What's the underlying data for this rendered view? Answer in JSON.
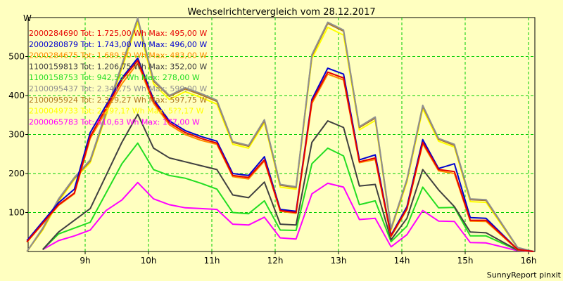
{
  "chart_data": {
    "type": "line",
    "title": "Wechselrichtervergleich vom 28.12.2017",
    "ylabel": "W",
    "xlabel": "",
    "ylim": [
      0,
      600
    ],
    "xlim": [
      8.1,
      16.1
    ],
    "x_ticks": [
      9,
      10,
      11,
      12,
      13,
      14,
      15,
      16
    ],
    "x_tick_labels": [
      "9h",
      "10h",
      "11h",
      "12h",
      "13h",
      "14h",
      "15h",
      "16h"
    ],
    "y_ticks": [
      100,
      200,
      300,
      400,
      500
    ],
    "y_tick_labels": [
      "100",
      "200",
      "300",
      "400",
      "500"
    ],
    "grid": true,
    "legend_position": "top-left",
    "footer": "SunnyReport pinxit",
    "series": [
      {
        "name": "2000284690 Tot: 1.725,00 Wh Max: 495,00 W",
        "color": "#e60000",
        "x": [
          8.08,
          8.58,
          8.83,
          9.08,
          9.58,
          9.83,
          10.08,
          10.33,
          10.58,
          10.83,
          11.08,
          11.33,
          11.58,
          11.83,
          12.08,
          12.33,
          12.58,
          12.83,
          13.08,
          13.33,
          13.58,
          13.83,
          14.08,
          14.33,
          14.58,
          14.83,
          15.08,
          15.33,
          15.83,
          16.08
        ],
        "values": [
          25,
          120,
          150,
          295,
          440,
          490,
          385,
          330,
          305,
          290,
          278,
          195,
          190,
          235,
          105,
          100,
          385,
          460,
          445,
          230,
          240,
          40,
          110,
          280,
          210,
          205,
          80,
          80,
          5,
          0
        ]
      },
      {
        "name": "2000280879 Tot: 1.743,00 Wh Max: 496,00 W",
        "color": "#0000d0",
        "x": [
          8.08,
          8.58,
          8.83,
          9.08,
          9.58,
          9.83,
          10.08,
          10.33,
          10.58,
          10.83,
          11.08,
          11.33,
          11.58,
          11.83,
          12.08,
          12.33,
          12.58,
          12.83,
          13.08,
          13.33,
          13.58,
          13.83,
          14.08,
          14.33,
          14.58,
          14.83,
          15.08,
          15.33,
          15.83,
          16.08
        ],
        "values": [
          28,
          125,
          160,
          305,
          445,
          496,
          390,
          335,
          310,
          295,
          283,
          200,
          195,
          243,
          108,
          103,
          390,
          470,
          455,
          235,
          248,
          42,
          115,
          287,
          213,
          225,
          87,
          85,
          5,
          0
        ]
      },
      {
        "name": "2000284675 Tot: 1.689,50 Wh Max: 483,00 W",
        "color": "#ff8c00",
        "x": [
          8.08,
          8.58,
          8.83,
          9.08,
          9.58,
          9.83,
          10.08,
          10.33,
          10.58,
          10.83,
          11.08,
          11.33,
          11.58,
          11.83,
          12.08,
          12.33,
          12.58,
          12.83,
          13.08,
          13.33,
          13.58,
          13.83,
          14.08,
          14.33,
          14.58,
          14.83,
          15.08,
          15.33,
          15.83,
          16.08
        ],
        "values": [
          24,
          118,
          148,
          290,
          430,
          483,
          380,
          325,
          300,
          285,
          275,
          192,
          186,
          232,
          103,
          98,
          380,
          455,
          440,
          228,
          236,
          38,
          108,
          276,
          207,
          200,
          78,
          77,
          4,
          0
        ]
      },
      {
        "name": "1100159813 Tot: 1.206,75 Wh Max: 352,00 W",
        "color": "#404040",
        "x": [
          8.33,
          8.58,
          8.83,
          9.08,
          9.58,
          9.83,
          10.08,
          10.33,
          10.58,
          10.83,
          11.08,
          11.33,
          11.58,
          11.83,
          12.08,
          12.33,
          12.58,
          12.83,
          13.08,
          13.33,
          13.58,
          13.83,
          14.08,
          14.33,
          14.58,
          14.83,
          15.08,
          15.33,
          15.83,
          16.08
        ],
        "values": [
          5,
          50,
          80,
          110,
          280,
          352,
          265,
          240,
          230,
          220,
          210,
          145,
          138,
          178,
          70,
          68,
          280,
          335,
          318,
          168,
          172,
          30,
          85,
          210,
          158,
          115,
          50,
          48,
          3,
          0
        ]
      },
      {
        "name": "1100158753 Tot: 942,50 Wh Max: 278,00 W",
        "color": "#22dd22",
        "x": [
          8.33,
          8.58,
          8.83,
          9.08,
          9.58,
          9.83,
          10.08,
          10.33,
          10.58,
          10.83,
          11.08,
          11.33,
          11.58,
          11.83,
          12.08,
          12.33,
          12.58,
          12.83,
          13.08,
          13.33,
          13.58,
          13.83,
          14.08,
          14.33,
          14.58,
          14.83,
          15.08,
          15.33,
          15.83,
          16.08
        ],
        "values": [
          5,
          45,
          60,
          75,
          225,
          278,
          210,
          195,
          188,
          175,
          160,
          100,
          97,
          130,
          55,
          54,
          225,
          265,
          245,
          120,
          130,
          25,
          65,
          165,
          112,
          113,
          40,
          40,
          3,
          0
        ]
      },
      {
        "name": "2100095437 Tot: 2.341,75 Wh Max: 599,00 W",
        "color": "#909090",
        "x": [
          8.08,
          8.33,
          8.58,
          8.83,
          9.08,
          9.58,
          9.83,
          10.08,
          10.33,
          10.58,
          10.83,
          11.08,
          11.33,
          11.58,
          11.83,
          12.08,
          12.33,
          12.58,
          12.83,
          13.08,
          13.33,
          13.58,
          13.83,
          14.08,
          14.33,
          14.58,
          14.83,
          15.08,
          15.33,
          15.83,
          16.08
        ],
        "values": [
          0,
          60,
          135,
          190,
          235,
          480,
          599,
          440,
          400,
          420,
          405,
          388,
          282,
          272,
          338,
          172,
          166,
          505,
          588,
          568,
          320,
          345,
          60,
          185,
          375,
          290,
          275,
          135,
          133,
          10,
          0
        ]
      },
      {
        "name": "2100095924 Tot: 2.329,27 Wh Max: 597,75 W",
        "color": "#b07820",
        "x": [
          8.08,
          8.33,
          8.58,
          8.83,
          9.08,
          9.58,
          9.83,
          10.08,
          10.33,
          10.58,
          10.83,
          11.08,
          11.33,
          11.58,
          11.83,
          12.08,
          12.33,
          12.58,
          12.83,
          13.08,
          13.33,
          13.58,
          13.83,
          14.08,
          14.33,
          14.58,
          14.83,
          15.08,
          15.33,
          15.83,
          16.08
        ],
        "values": [
          0,
          58,
          132,
          188,
          232,
          476,
          597,
          437,
          398,
          417,
          402,
          385,
          280,
          270,
          335,
          170,
          164,
          502,
          585,
          565,
          318,
          342,
          58,
          183,
          372,
          288,
          272,
          133,
          131,
          9,
          0
        ]
      },
      {
        "name": "2100049733 Tot: 2.29?,1? Wh Max: 5??,17 W",
        "color": "#ffff00",
        "x": [
          8.08,
          8.33,
          8.58,
          8.83,
          9.08,
          9.58,
          9.83,
          10.08,
          10.33,
          10.58,
          10.83,
          11.08,
          11.33,
          11.58,
          11.83,
          12.08,
          12.33,
          12.58,
          12.83,
          13.08,
          13.33,
          13.58,
          13.83,
          14.08,
          14.33,
          14.58,
          14.83,
          15.08,
          15.33,
          15.83,
          16.08
        ],
        "values": [
          0,
          55,
          128,
          185,
          228,
          470,
          588,
          430,
          390,
          410,
          395,
          378,
          275,
          265,
          330,
          165,
          160,
          495,
          575,
          555,
          312,
          336,
          55,
          178,
          366,
          283,
          268,
          128,
          126,
          8,
          0
        ]
      },
      {
        "name": "2000065783 Tot: 610,63 Wh Max: 177,00 W",
        "color": "#ff00ff",
        "x": [
          8.33,
          8.58,
          8.83,
          9.08,
          9.33,
          9.58,
          9.83,
          10.08,
          10.33,
          10.58,
          10.83,
          11.08,
          11.33,
          11.58,
          11.83,
          12.08,
          12.33,
          12.58,
          12.83,
          13.08,
          13.33,
          13.58,
          13.83,
          14.08,
          14.33,
          14.58,
          14.83,
          15.08,
          15.33,
          15.83,
          16.08
        ],
        "values": [
          5,
          28,
          40,
          55,
          105,
          132,
          177,
          135,
          120,
          112,
          110,
          108,
          70,
          68,
          88,
          35,
          32,
          148,
          175,
          165,
          82,
          85,
          12,
          43,
          105,
          78,
          77,
          23,
          22,
          2,
          0
        ]
      }
    ]
  }
}
